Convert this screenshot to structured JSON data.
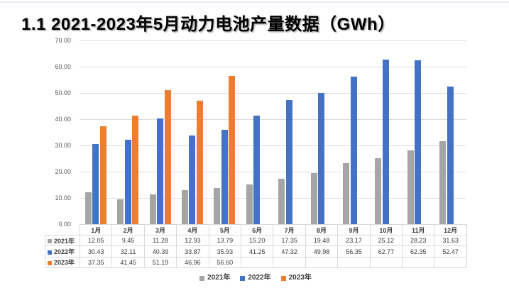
{
  "page": {
    "title": "1.1 2021-2023年5月动力电池产量数据（GWh）"
  },
  "chart_data": {
    "type": "bar",
    "title": "1.1 2021-2023年5月动力电池产量数据（GWh）",
    "unit": "GWh",
    "categories": [
      "1月",
      "2月",
      "3月",
      "4月",
      "5月",
      "6月",
      "7月",
      "8月",
      "9月",
      "10月",
      "11月",
      "12月"
    ],
    "series": [
      {
        "name": "2021年",
        "color": "#A5A5A5",
        "values": [
          12.05,
          9.45,
          11.28,
          12.93,
          13.79,
          15.2,
          17.35,
          19.48,
          23.17,
          25.12,
          28.23,
          31.63
        ]
      },
      {
        "name": "2022年",
        "color": "#4472C4",
        "values": [
          30.43,
          32.11,
          40.39,
          33.87,
          35.93,
          41.25,
          47.32,
          49.98,
          56.35,
          62.77,
          62.35,
          52.47
        ]
      },
      {
        "name": "2023年",
        "color": "#ED7D31",
        "values": [
          37.35,
          41.45,
          51.19,
          46.96,
          56.6,
          null,
          null,
          null,
          null,
          null,
          null,
          null
        ]
      }
    ],
    "ylim": [
      0,
      70
    ],
    "ytick_step": 10,
    "ytick_labels": [
      "0.00",
      "10.00",
      "20.00",
      "30.00",
      "40.00",
      "50.00",
      "60.00",
      "70.00"
    ],
    "grid": true,
    "legend_position": "bottom",
    "has_data_table": true,
    "value_format": "0.00"
  },
  "colors": {
    "gridline": "#DCDCDC",
    "axis_text": "#595959",
    "table_border": "#D9D9D9",
    "table_text": "#404040",
    "title_text": "#000000"
  }
}
